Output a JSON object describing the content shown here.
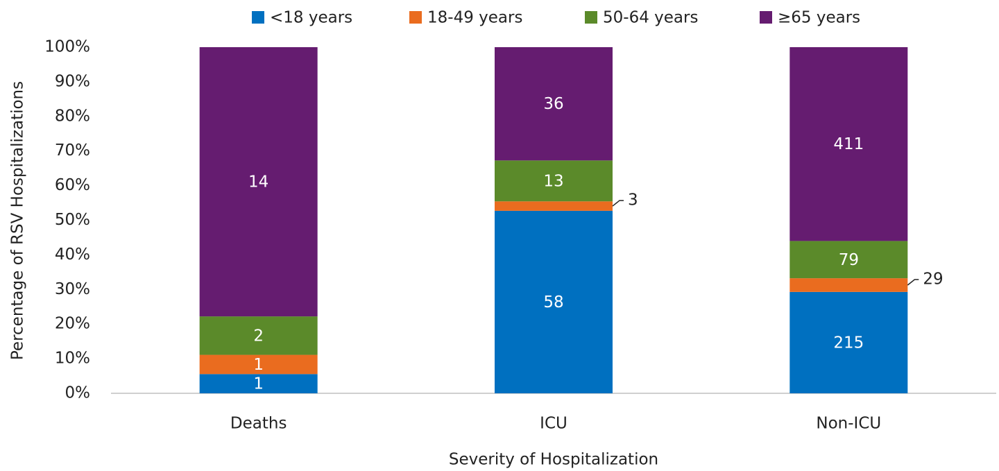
{
  "chart_data": {
    "type": "stacked_percent",
    "x_label": "Severity of Hospitalization",
    "y_label": "Percentage of RSV Hospitalizations",
    "categories": [
      "Deaths",
      "ICU",
      "Non-ICU"
    ],
    "series": [
      {
        "name": "<18 years",
        "color": "#0070c0",
        "values": [
          1,
          58,
          215
        ]
      },
      {
        "name": "18-49 years",
        "color": "#ea6c1f",
        "values": [
          1,
          3,
          29
        ]
      },
      {
        "name": "50-64 years",
        "color": "#5b8a2a",
        "values": [
          2,
          13,
          79
        ]
      },
      {
        "name": "≥65 years",
        "color": "#651c70",
        "values": [
          14,
          36,
          411
        ]
      }
    ],
    "ylim": [
      0,
      100
    ],
    "yticks": [
      {
        "value": 0,
        "label": "0%"
      },
      {
        "value": 10,
        "label": "10%"
      },
      {
        "value": 20,
        "label": "20%"
      },
      {
        "value": 30,
        "label": "30%"
      },
      {
        "value": 40,
        "label": "40%"
      },
      {
        "value": 50,
        "label": "50%"
      },
      {
        "value": 60,
        "label": "60%"
      },
      {
        "value": 70,
        "label": "70%"
      },
      {
        "value": 80,
        "label": "80%"
      },
      {
        "value": 90,
        "label": "90%"
      },
      {
        "value": 100,
        "label": "100%"
      }
    ],
    "legend": "top"
  }
}
